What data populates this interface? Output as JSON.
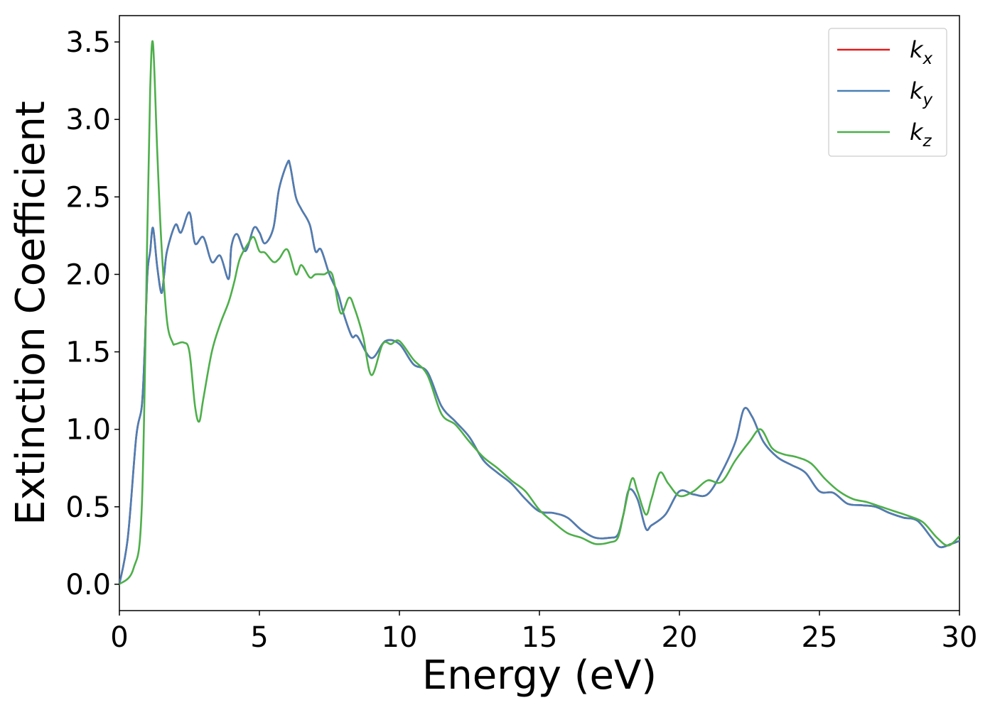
{
  "chart_data": {
    "type": "line",
    "xlabel": "Energy (eV)",
    "ylabel": "Extinction Coefficient",
    "xlim": [
      0,
      30
    ],
    "ylim": [
      -0.17,
      3.67
    ],
    "xticks": [
      0,
      5,
      10,
      15,
      20,
      25,
      30
    ],
    "xtick_labels": [
      "0",
      "5",
      "10",
      "15",
      "20",
      "25",
      "30"
    ],
    "yticks": [
      0.0,
      0.5,
      1.0,
      1.5,
      2.0,
      2.5,
      3.0,
      3.5
    ],
    "ytick_labels": [
      "0.0",
      "0.5",
      "1.0",
      "1.5",
      "2.0",
      "2.5",
      "3.0",
      "3.5"
    ],
    "grid": false,
    "legend_position": "top-right",
    "series": [
      {
        "name": "k_x",
        "color": "#e41a1c",
        "x": [
          0,
          0.3,
          0.6,
          0.8,
          0.9,
          1.0,
          1.1,
          1.2,
          1.35,
          1.5,
          1.6,
          1.7,
          2.0,
          2.2,
          2.5,
          2.7,
          3.0,
          3.3,
          3.6,
          3.9,
          4.0,
          4.2,
          4.5,
          4.8,
          5.0,
          5.2,
          5.5,
          5.7,
          6.0,
          6.1,
          6.3,
          6.5,
          6.8,
          7.0,
          7.2,
          7.5,
          7.8,
          8.0,
          8.3,
          8.5,
          9.0,
          9.5,
          10.0,
          10.5,
          11.0,
          11.5,
          12.0,
          12.5,
          13.0,
          13.5,
          14.0,
          14.5,
          15.0,
          15.5,
          16.0,
          16.5,
          17.0,
          17.5,
          17.8,
          18.0,
          18.2,
          18.5,
          18.8,
          19.0,
          19.5,
          20.0,
          20.5,
          21.0,
          21.5,
          22.0,
          22.3,
          22.6,
          23.0,
          23.5,
          24.0,
          24.5,
          25.0,
          25.5,
          26.0,
          26.5,
          27.0,
          27.5,
          28.0,
          28.5,
          29.0,
          29.3,
          29.7,
          30.0
        ],
        "values": [
          0.0,
          0.3,
          0.95,
          1.15,
          1.5,
          2.0,
          2.15,
          2.3,
          2.05,
          1.88,
          2.0,
          2.15,
          2.32,
          2.27,
          2.4,
          2.2,
          2.24,
          2.08,
          2.12,
          1.97,
          2.18,
          2.26,
          2.15,
          2.3,
          2.27,
          2.2,
          2.3,
          2.55,
          2.72,
          2.7,
          2.5,
          2.42,
          2.32,
          2.15,
          2.16,
          2.0,
          1.88,
          1.75,
          1.6,
          1.6,
          1.46,
          1.57,
          1.55,
          1.42,
          1.37,
          1.15,
          1.05,
          0.95,
          0.8,
          0.72,
          0.65,
          0.55,
          0.47,
          0.46,
          0.43,
          0.35,
          0.3,
          0.3,
          0.32,
          0.45,
          0.61,
          0.55,
          0.36,
          0.38,
          0.45,
          0.6,
          0.58,
          0.58,
          0.72,
          0.92,
          1.13,
          1.08,
          0.92,
          0.82,
          0.77,
          0.72,
          0.6,
          0.59,
          0.52,
          0.51,
          0.5,
          0.46,
          0.43,
          0.41,
          0.3,
          0.24,
          0.26,
          0.28
        ]
      },
      {
        "name": "k_y",
        "color": "#4a7fb5",
        "x": [
          0,
          0.3,
          0.6,
          0.8,
          0.9,
          1.0,
          1.1,
          1.2,
          1.35,
          1.5,
          1.6,
          1.7,
          2.0,
          2.2,
          2.5,
          2.7,
          3.0,
          3.3,
          3.6,
          3.9,
          4.0,
          4.2,
          4.5,
          4.8,
          5.0,
          5.2,
          5.5,
          5.7,
          6.0,
          6.1,
          6.3,
          6.5,
          6.8,
          7.0,
          7.2,
          7.5,
          7.8,
          8.0,
          8.3,
          8.5,
          9.0,
          9.5,
          10.0,
          10.5,
          11.0,
          11.5,
          12.0,
          12.5,
          13.0,
          13.5,
          14.0,
          14.5,
          15.0,
          15.5,
          16.0,
          16.5,
          17.0,
          17.5,
          17.8,
          18.0,
          18.2,
          18.5,
          18.8,
          19.0,
          19.5,
          20.0,
          20.5,
          21.0,
          21.5,
          22.0,
          22.3,
          22.6,
          23.0,
          23.5,
          24.0,
          24.5,
          25.0,
          25.5,
          26.0,
          26.5,
          27.0,
          27.5,
          28.0,
          28.5,
          29.0,
          29.3,
          29.7,
          30.0
        ],
        "values": [
          0.0,
          0.3,
          0.95,
          1.15,
          1.5,
          2.0,
          2.15,
          2.3,
          2.05,
          1.88,
          2.0,
          2.15,
          2.32,
          2.27,
          2.4,
          2.2,
          2.24,
          2.08,
          2.12,
          1.97,
          2.18,
          2.26,
          2.15,
          2.3,
          2.27,
          2.2,
          2.3,
          2.55,
          2.72,
          2.7,
          2.5,
          2.42,
          2.32,
          2.15,
          2.16,
          2.0,
          1.88,
          1.75,
          1.6,
          1.6,
          1.46,
          1.57,
          1.55,
          1.42,
          1.37,
          1.15,
          1.05,
          0.95,
          0.8,
          0.72,
          0.65,
          0.55,
          0.47,
          0.46,
          0.43,
          0.35,
          0.3,
          0.3,
          0.32,
          0.45,
          0.61,
          0.55,
          0.36,
          0.38,
          0.45,
          0.6,
          0.58,
          0.58,
          0.72,
          0.92,
          1.13,
          1.08,
          0.92,
          0.82,
          0.77,
          0.72,
          0.6,
          0.59,
          0.52,
          0.51,
          0.5,
          0.46,
          0.43,
          0.41,
          0.3,
          0.24,
          0.26,
          0.28
        ]
      },
      {
        "name": "k_z",
        "color": "#4daf4a",
        "x": [
          0,
          0.5,
          0.8,
          1.0,
          1.1,
          1.2,
          1.35,
          1.5,
          1.7,
          1.9,
          2.0,
          2.3,
          2.5,
          2.7,
          2.85,
          3.0,
          3.3,
          3.6,
          3.9,
          4.1,
          4.3,
          4.6,
          4.8,
          5.0,
          5.2,
          5.5,
          5.7,
          6.0,
          6.3,
          6.5,
          6.8,
          7.0,
          7.3,
          7.6,
          7.9,
          8.2,
          8.4,
          8.7,
          9.0,
          9.4,
          9.7,
          10.0,
          10.5,
          11.0,
          11.5,
          12.0,
          12.5,
          13.0,
          13.5,
          14.0,
          14.5,
          15.0,
          15.5,
          16.0,
          16.5,
          17.0,
          17.5,
          17.8,
          18.0,
          18.3,
          18.5,
          18.8,
          19.0,
          19.3,
          19.6,
          20.0,
          20.5,
          21.0,
          21.5,
          22.0,
          22.5,
          22.9,
          23.3,
          23.7,
          24.2,
          24.7,
          25.2,
          25.7,
          26.2,
          26.7,
          27.2,
          27.7,
          28.2,
          28.7,
          29.2,
          29.6,
          30.0
        ],
        "values": [
          0.0,
          0.1,
          0.5,
          2.3,
          3.2,
          3.49,
          2.8,
          2.2,
          1.7,
          1.56,
          1.55,
          1.56,
          1.5,
          1.15,
          1.05,
          1.2,
          1.5,
          1.68,
          1.82,
          1.95,
          2.1,
          2.2,
          2.24,
          2.15,
          2.14,
          2.08,
          2.1,
          2.16,
          2.0,
          2.06,
          1.98,
          2.0,
          2.0,
          2.0,
          1.75,
          1.85,
          1.78,
          1.6,
          1.35,
          1.55,
          1.55,
          1.57,
          1.45,
          1.35,
          1.1,
          1.03,
          0.92,
          0.82,
          0.75,
          0.67,
          0.6,
          0.48,
          0.4,
          0.33,
          0.3,
          0.26,
          0.27,
          0.3,
          0.45,
          0.68,
          0.6,
          0.45,
          0.55,
          0.72,
          0.65,
          0.57,
          0.6,
          0.67,
          0.66,
          0.8,
          0.92,
          1.0,
          0.88,
          0.84,
          0.82,
          0.78,
          0.68,
          0.6,
          0.55,
          0.53,
          0.5,
          0.47,
          0.44,
          0.4,
          0.3,
          0.25,
          0.31
        ]
      }
    ]
  }
}
